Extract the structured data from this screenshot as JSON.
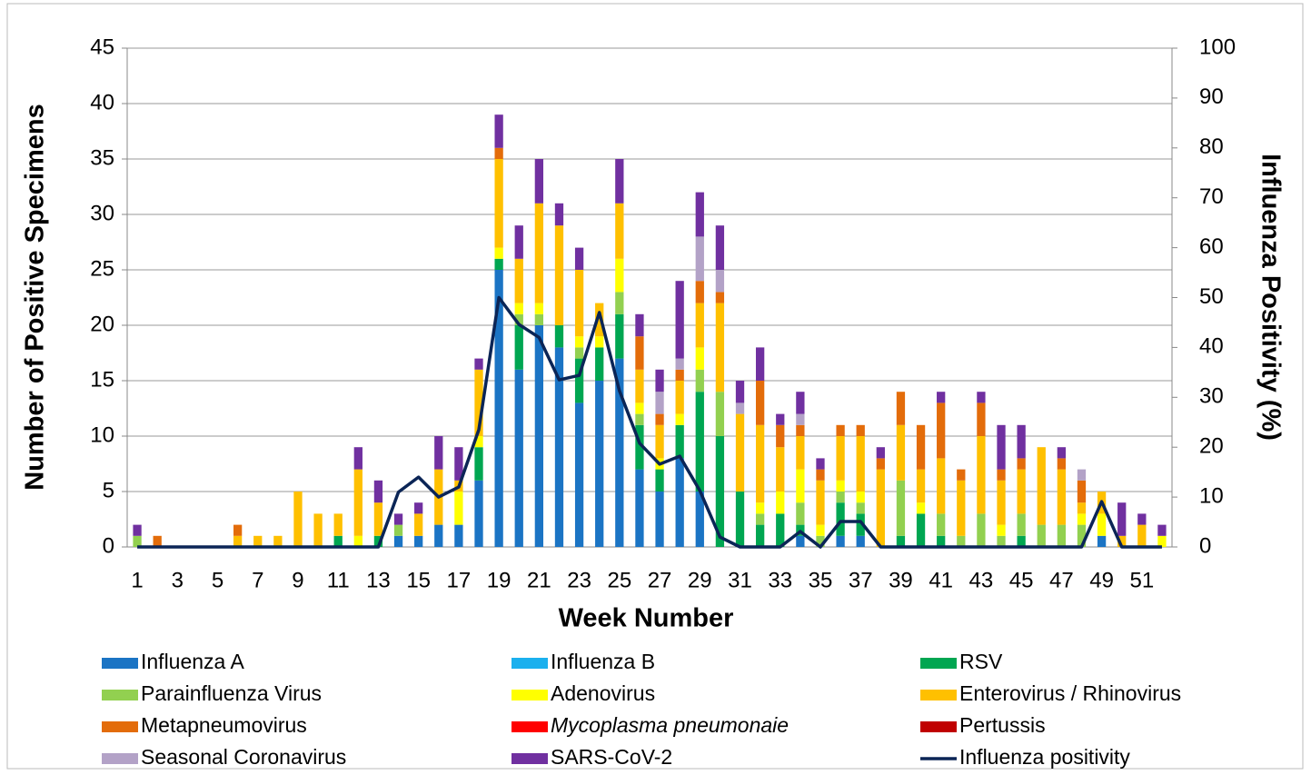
{
  "chart_data": {
    "type": "stacked-bar-line",
    "xlabel": "Week Number",
    "ylabel": "Number of Positive Specimens",
    "y2label": "Influenza Positivity (%)",
    "categories": [
      "1",
      null,
      "3",
      null,
      "5",
      null,
      "7",
      null,
      "9",
      null,
      "11",
      null,
      "13",
      null,
      "15",
      null,
      "17",
      null,
      "19",
      null,
      "21",
      null,
      "23",
      null,
      "25",
      null,
      "27",
      null,
      "29",
      null,
      "31",
      null,
      "33",
      null,
      "35",
      null,
      "37",
      null,
      "39",
      null,
      "41",
      null,
      "43",
      null,
      "45",
      null,
      "47",
      null,
      "49",
      null,
      "51",
      null
    ],
    "ylim": [
      0,
      45
    ],
    "yticks": [
      0,
      5,
      10,
      15,
      20,
      25,
      30,
      35,
      40,
      45
    ],
    "y2lim": [
      0,
      100
    ],
    "y2ticks": [
      0,
      10,
      20,
      30,
      40,
      50,
      60,
      70,
      80,
      90,
      100
    ],
    "grid": true,
    "series": [
      {
        "name": "Influenza A",
        "color": "#1b74c4",
        "values": [
          0,
          0,
          0,
          0,
          0,
          0,
          0,
          0,
          0,
          0,
          0,
          0,
          0,
          1,
          1,
          2,
          2,
          6,
          25,
          16,
          20,
          18,
          13,
          15,
          17,
          7,
          5,
          8,
          5,
          0,
          0,
          0,
          0,
          1,
          0,
          1,
          1,
          0,
          0,
          0,
          0,
          0,
          0,
          0,
          0,
          0,
          0,
          0,
          1,
          0,
          0,
          0
        ]
      },
      {
        "name": "Influenza B",
        "color": "#1bb0ee",
        "values": [
          0,
          0,
          0,
          0,
          0,
          0,
          0,
          0,
          0,
          0,
          0,
          0,
          0,
          0,
          0,
          0,
          0,
          0,
          0,
          0,
          0,
          0,
          0,
          0,
          0,
          0,
          0,
          0,
          0,
          0,
          0,
          0,
          0,
          0,
          0,
          0,
          0,
          0,
          0,
          0,
          0,
          0,
          0,
          0,
          0,
          0,
          0,
          0,
          0,
          0,
          0,
          0
        ]
      },
      {
        "name": "RSV",
        "color": "#00a651",
        "values": [
          0,
          0,
          0,
          0,
          0,
          0,
          0,
          0,
          0,
          0,
          1,
          0,
          1,
          0,
          0,
          0,
          0,
          3,
          1,
          4,
          0,
          2,
          4,
          3,
          4,
          4,
          2,
          3,
          9,
          10,
          5,
          2,
          3,
          1,
          0,
          3,
          2,
          0,
          1,
          3,
          1,
          0,
          0,
          0,
          1,
          0,
          0,
          0,
          0,
          0,
          0,
          0
        ]
      },
      {
        "name": "Parainfluenza Virus",
        "color": "#92d050",
        "values": [
          1,
          0,
          0,
          0,
          0,
          0,
          0,
          0,
          0,
          0,
          0,
          0,
          0,
          1,
          0,
          0,
          0,
          0,
          0,
          1,
          1,
          0,
          1,
          0,
          2,
          1,
          0,
          0,
          2,
          4,
          0,
          1,
          0,
          2,
          1,
          1,
          1,
          0,
          5,
          0,
          2,
          1,
          3,
          1,
          2,
          2,
          2,
          2,
          0,
          0,
          0,
          0
        ]
      },
      {
        "name": "Adenovirus",
        "color": "#ffff00",
        "values": [
          0,
          0,
          0,
          0,
          0,
          0,
          0,
          0,
          0,
          0,
          0,
          1,
          0,
          0,
          0,
          0,
          3,
          1,
          1,
          1,
          1,
          0,
          1,
          1,
          3,
          1,
          1,
          1,
          2,
          0,
          0,
          1,
          2,
          3,
          1,
          1,
          1,
          0,
          0,
          1,
          0,
          0,
          0,
          1,
          0,
          0,
          0,
          1,
          2,
          0,
          0,
          1
        ]
      },
      {
        "name": "Enterovirus / Rhinovirus",
        "color": "#ffc000",
        "values": [
          0,
          0,
          0,
          0,
          0,
          1,
          1,
          1,
          5,
          3,
          2,
          6,
          3,
          0,
          2,
          5,
          1,
          6,
          8,
          4,
          9,
          9,
          6,
          3,
          5,
          3,
          3,
          3,
          4,
          8,
          7,
          7,
          4,
          3,
          4,
          4,
          5,
          7,
          5,
          3,
          5,
          5,
          7,
          4,
          4,
          7,
          5,
          1,
          2,
          1,
          2,
          0
        ]
      },
      {
        "name": "Metapneumovirus",
        "color": "#e36c0a",
        "values": [
          0,
          1,
          0,
          0,
          0,
          1,
          0,
          0,
          0,
          0,
          0,
          0,
          0,
          0,
          0,
          0,
          0,
          0,
          1,
          0,
          0,
          0,
          0,
          0,
          0,
          3,
          1,
          1,
          2,
          1,
          0,
          4,
          2,
          1,
          1,
          1,
          1,
          1,
          3,
          4,
          5,
          1,
          3,
          1,
          1,
          0,
          1,
          2,
          0,
          0,
          0,
          0
        ]
      },
      {
        "name": "Mycoplasma pneumonaie",
        "italic": true,
        "color": "#ff0000",
        "values": [
          0,
          0,
          0,
          0,
          0,
          0,
          0,
          0,
          0,
          0,
          0,
          0,
          0,
          0,
          0,
          0,
          0,
          0,
          0,
          0,
          0,
          0,
          0,
          0,
          0,
          0,
          0,
          0,
          0,
          0,
          0,
          0,
          0,
          0,
          0,
          0,
          0,
          0,
          0,
          0,
          0,
          0,
          0,
          0,
          0,
          0,
          0,
          0,
          0,
          0,
          0,
          0
        ]
      },
      {
        "name": "Pertussis",
        "color": "#c00000",
        "values": [
          0,
          0,
          0,
          0,
          0,
          0,
          0,
          0,
          0,
          0,
          0,
          0,
          0,
          0,
          0,
          0,
          0,
          0,
          0,
          0,
          0,
          0,
          0,
          0,
          0,
          0,
          0,
          0,
          0,
          0,
          0,
          0,
          0,
          0,
          0,
          0,
          0,
          0,
          0,
          0,
          0,
          0,
          0,
          0,
          0,
          0,
          0,
          0,
          0,
          0,
          0,
          0
        ]
      },
      {
        "name": "Seasonal Coronavirus",
        "color": "#b3a2c7",
        "values": [
          0,
          0,
          0,
          0,
          0,
          0,
          0,
          0,
          0,
          0,
          0,
          0,
          0,
          0,
          0,
          0,
          0,
          0,
          0,
          0,
          0,
          0,
          0,
          0,
          0,
          0,
          2,
          1,
          4,
          2,
          1,
          0,
          0,
          1,
          0,
          0,
          0,
          0,
          0,
          0,
          0,
          0,
          0,
          0,
          0,
          0,
          0,
          1,
          0,
          0,
          0,
          0
        ]
      },
      {
        "name": "SARS-CoV-2",
        "color": "#7030a0",
        "values": [
          1,
          0,
          0,
          0,
          0,
          0,
          0,
          0,
          0,
          0,
          0,
          2,
          2,
          1,
          1,
          3,
          3,
          1,
          3,
          3,
          4,
          2,
          2,
          0,
          4,
          2,
          2,
          7,
          4,
          4,
          2,
          3,
          1,
          2,
          1,
          0,
          0,
          1,
          0,
          0,
          1,
          0,
          1,
          4,
          3,
          0,
          1,
          0,
          0,
          3,
          1,
          1
        ]
      },
      {
        "name": "Influenza positivity",
        "type": "line",
        "axis": "y2",
        "color": "#0b2556",
        "values": [
          0,
          0,
          0,
          0,
          0,
          0,
          0,
          0,
          0,
          0,
          0,
          0,
          0,
          11,
          14,
          10,
          12,
          23.5,
          50,
          44.6,
          42,
          33.5,
          34.4,
          47,
          31.3,
          20.8,
          16.6,
          18.2,
          11.3,
          2,
          0,
          0,
          0,
          3.1,
          0,
          5.1,
          5.1,
          0,
          0,
          0,
          0,
          0,
          0,
          0,
          0,
          0,
          0,
          0,
          9.1,
          0,
          0,
          0
        ]
      }
    ]
  }
}
